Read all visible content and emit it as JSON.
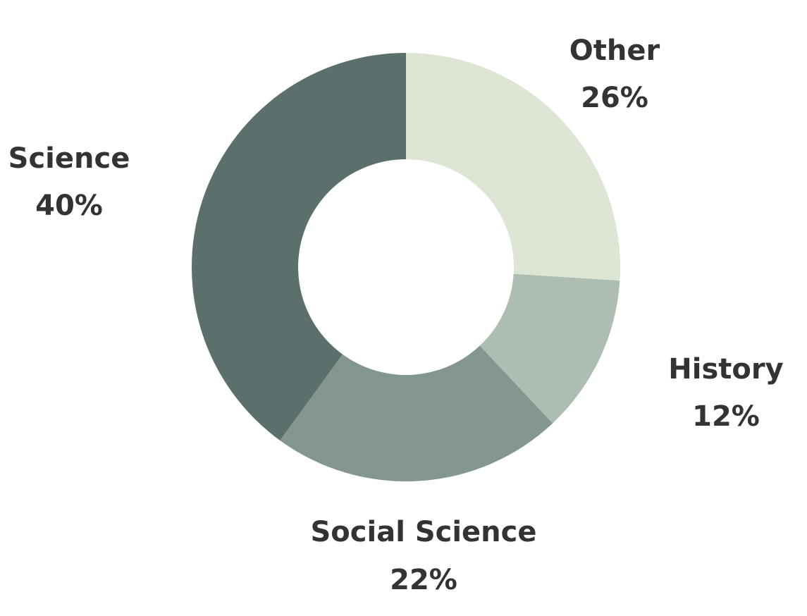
{
  "chart_data": {
    "type": "pie",
    "variant": "donut",
    "categories": [
      "Other",
      "History",
      "Social Science",
      "Science"
    ],
    "values": [
      26,
      12,
      22,
      40
    ],
    "value_labels": [
      "26%",
      "12%",
      "22%",
      "40%"
    ],
    "colors": [
      "#DDE5D5",
      "#AEBDB1",
      "#83968F",
      "#5B706C"
    ],
    "title": "",
    "legend": "none",
    "label_placement": "outside"
  }
}
